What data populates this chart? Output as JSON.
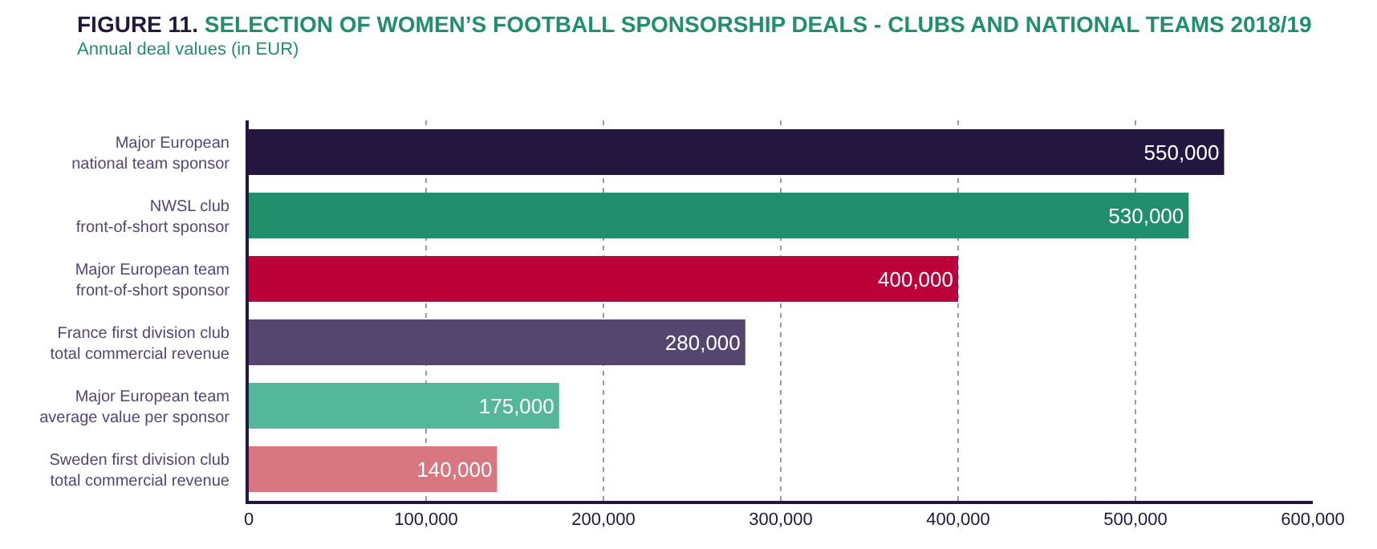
{
  "chart_data": {
    "type": "bar",
    "orientation": "horizontal",
    "title": "FIGURE 11. SELECTION OF WOMEN’S FOOTBALL SPONSORSHIP DEALS - CLUBS AND NATIONAL TEAMS 2018/19",
    "subtitle": "Annual deal values (in EUR)",
    "categories": [
      "Major European\nnational team sponsor",
      "NWSL club\nfront-of-short sponsor",
      "Major European team\nfront-of-short sponsor",
      "France first division club\ntotal commercial revenue",
      "Major European team\naverage value per sponsor",
      "Sweden first division club\ntotal commercial revenue"
    ],
    "values": [
      550000,
      530000,
      400000,
      280000,
      175000,
      140000
    ],
    "colors": [
      "#23173f",
      "#218f6c",
      "#bb003a",
      "#54466f",
      "#55b799",
      "#d8777f"
    ],
    "value_labels": [
      "550,000",
      "530,000",
      "400,000",
      "280,000",
      "175,000",
      "140,000"
    ],
    "xlim": [
      0,
      600000
    ],
    "xticks": [
      0,
      {
        "value": 100000,
        "label": "100,000"
      },
      {
        "value": 200000,
        "label": "200,000"
      },
      {
        "value": 300000,
        "label": "300,000"
      },
      {
        "value": 400000,
        "label": "400,000"
      },
      {
        "value": 500000,
        "label": "500,000"
      },
      {
        "value": 600000,
        "label": "600,000"
      }
    ],
    "grid": "x"
  }
}
